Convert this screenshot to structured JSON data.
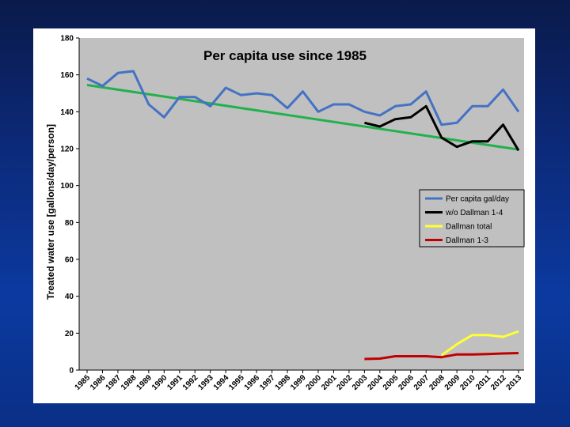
{
  "chart_data": {
    "type": "line",
    "title": "Per capita use since 1985",
    "ylabel": "Treated water use [gallons/day/person]",
    "xlabel": "",
    "ylim": [
      0,
      180
    ],
    "yticks": [
      0,
      20,
      40,
      60,
      80,
      100,
      120,
      140,
      160,
      180
    ],
    "categories": [
      "1985",
      "1986",
      "1987",
      "1988",
      "1989",
      "1990",
      "1991",
      "1992",
      "1993",
      "1994",
      "1995",
      "1996",
      "1997",
      "1998",
      "1999",
      "2000",
      "2001",
      "2002",
      "2003",
      "2004",
      "2005",
      "2006",
      "2007",
      "2008",
      "2009",
      "2010",
      "2011",
      "2012",
      "2013"
    ],
    "legend_position": "right",
    "grid": false,
    "series": [
      {
        "name": "Per capita gal/day",
        "color": "#4472c4",
        "values": [
          158,
          154,
          161,
          162,
          144,
          137,
          148,
          148,
          143,
          153,
          149,
          150,
          149,
          142,
          151,
          140,
          144,
          144,
          140,
          138,
          143,
          144,
          151,
          133,
          134,
          143,
          143,
          152,
          140
        ]
      },
      {
        "name": "w/o Dallman 1-4",
        "color": "#000000",
        "values": [
          null,
          null,
          null,
          null,
          null,
          null,
          null,
          null,
          null,
          null,
          null,
          null,
          null,
          null,
          null,
          null,
          null,
          null,
          134,
          132,
          136,
          137,
          143,
          126,
          121,
          124,
          124,
          133,
          119
        ]
      },
      {
        "name": "Dallman total",
        "color": "#ffff33",
        "values": [
          null,
          null,
          null,
          null,
          null,
          null,
          null,
          null,
          null,
          null,
          null,
          null,
          null,
          null,
          null,
          null,
          null,
          null,
          null,
          null,
          null,
          null,
          null,
          8,
          14,
          19,
          19,
          18,
          21
        ]
      },
      {
        "name": "Dallman 1-3",
        "color": "#c00000",
        "values": [
          null,
          null,
          null,
          null,
          null,
          null,
          null,
          null,
          null,
          null,
          null,
          null,
          null,
          null,
          null,
          null,
          null,
          null,
          6,
          6.2,
          7.5,
          7.5,
          7.5,
          7,
          8.5,
          8.5,
          8.7,
          9,
          9.2
        ]
      }
    ],
    "trendline": {
      "color": "#22b14c",
      "start": 154.5,
      "end": 119.5
    }
  }
}
